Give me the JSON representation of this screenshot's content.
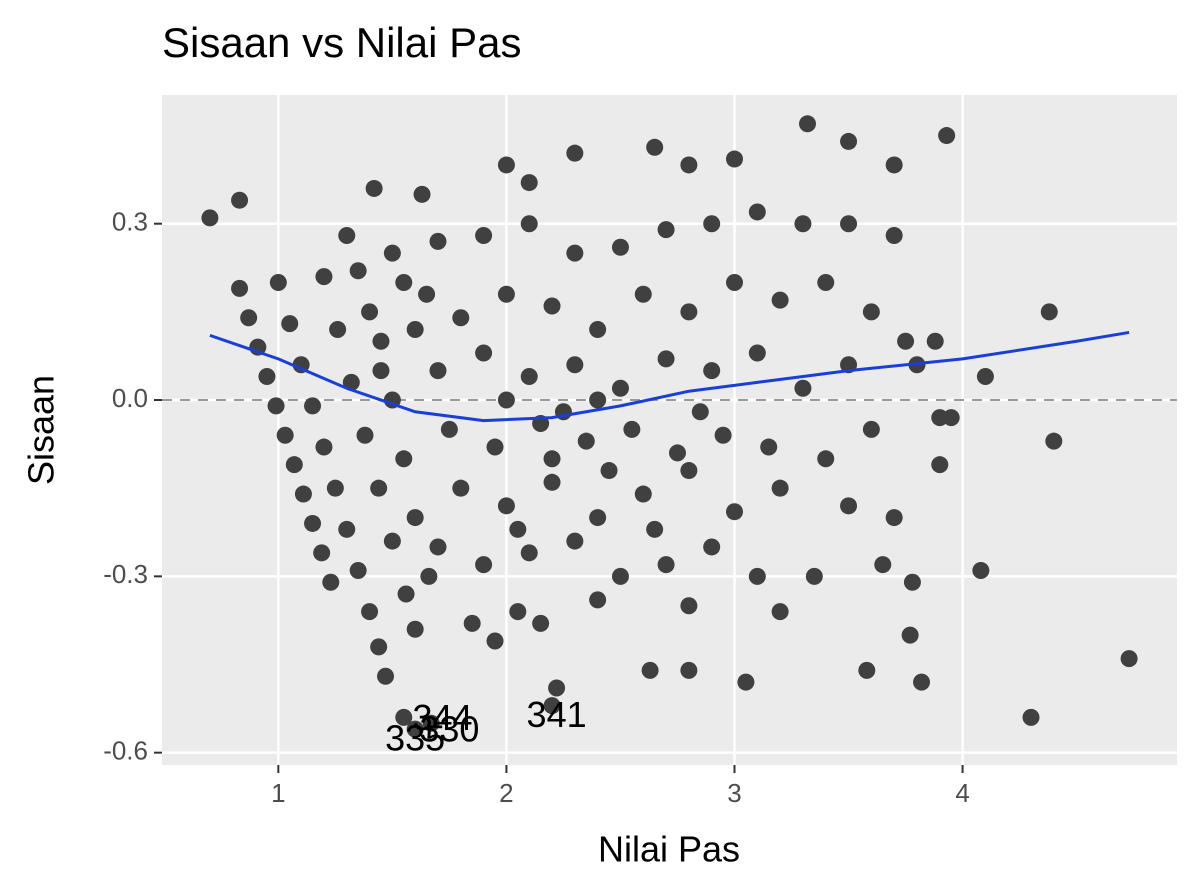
{
  "chart_data": {
    "type": "scatter",
    "title": "Sisaan vs Nilai Pas",
    "xlabel": "Nilai Pas",
    "ylabel": "Sisaan",
    "xlim": [
      0.49,
      4.94
    ],
    "ylim": [
      -0.621,
      0.519
    ],
    "xticks": [
      1,
      2,
      3,
      4
    ],
    "yticks": [
      {
        "value": 0.3,
        "label": "0.3"
      },
      {
        "value": 0,
        "label": "0.0"
      },
      {
        "value": -0.3,
        "label": "-0.3"
      },
      {
        "value": -0.6,
        "label": "-0.6"
      }
    ],
    "grid": true,
    "hline": 0,
    "points": {
      "color": "#404040",
      "x": [
        0.83,
        0.87,
        0.91,
        0.95,
        0.99,
        1.03,
        1.07,
        1.11,
        1.15,
        1.19,
        1.23,
        1.0,
        1.05,
        1.1,
        1.15,
        1.2,
        1.25,
        1.3,
        1.35,
        1.4,
        1.44,
        1.2,
        1.26,
        1.32,
        1.38,
        1.44,
        1.5,
        1.56,
        1.6,
        1.45,
        1.5,
        1.55,
        1.6,
        1.66,
        1.47,
        1.55,
        1.6,
        1.67,
        2.22,
        2.2,
        0.7,
        0.83,
        1.42,
        1.63,
        2.0,
        2.3,
        2.65,
        3.32,
        3.5,
        3.93,
        3.7,
        2.8,
        3.0,
        2.1,
        1.3,
        1.5,
        1.7,
        1.9,
        2.1,
        2.3,
        2.5,
        2.7,
        2.9,
        3.1,
        3.3,
        3.5,
        3.7,
        1.4,
        1.6,
        1.8,
        2.0,
        2.2,
        2.4,
        2.6,
        2.8,
        3.0,
        3.2,
        3.4,
        3.6,
        3.75,
        1.7,
        1.9,
        2.1,
        2.3,
        2.5,
        2.7,
        2.9,
        3.1,
        3.3,
        3.5,
        3.8,
        1.75,
        1.95,
        2.15,
        2.35,
        2.55,
        2.75,
        2.95,
        3.15,
        3.4,
        3.6,
        3.9,
        1.8,
        2.0,
        2.2,
        2.4,
        2.6,
        2.8,
        3.0,
        3.2,
        3.5,
        3.7,
        3.9,
        1.7,
        1.9,
        2.1,
        2.3,
        2.5,
        2.7,
        2.9,
        3.1,
        3.35,
        3.65,
        1.85,
        1.95,
        2.05,
        2.15,
        2.4,
        2.8,
        3.2,
        3.78,
        3.77,
        2.63,
        2.8,
        3.05,
        3.58,
        3.82,
        4.08,
        4.3,
        4.73,
        4.4,
        4.38,
        4.1,
        3.95,
        3.88,
        2.0,
        2.2,
        2.4,
        2.25,
        1.55,
        1.65,
        1.35,
        1.45,
        2.45,
        2.05,
        2.65,
        2.85
      ],
      "y": [
        0.19,
        0.14,
        0.09,
        0.04,
        -0.01,
        -0.06,
        -0.11,
        -0.16,
        -0.21,
        -0.26,
        -0.31,
        0.2,
        0.13,
        0.06,
        -0.01,
        -0.08,
        -0.15,
        -0.22,
        -0.29,
        -0.36,
        -0.42,
        0.21,
        0.12,
        0.03,
        -0.06,
        -0.15,
        -0.24,
        -0.33,
        -0.39,
        0.1,
        0.0,
        -0.1,
        -0.2,
        -0.3,
        -0.47,
        -0.54,
        -0.56,
        -0.55,
        -0.49,
        -0.52,
        0.31,
        0.34,
        0.36,
        0.35,
        0.4,
        0.42,
        0.43,
        0.47,
        0.44,
        0.45,
        0.4,
        0.4,
        0.41,
        0.37,
        0.28,
        0.25,
        0.27,
        0.28,
        0.3,
        0.25,
        0.26,
        0.29,
        0.3,
        0.32,
        0.3,
        0.3,
        0.28,
        0.15,
        0.12,
        0.14,
        0.18,
        0.16,
        0.12,
        0.18,
        0.15,
        0.2,
        0.17,
        0.2,
        0.15,
        0.1,
        0.05,
        0.08,
        0.04,
        0.06,
        0.02,
        0.07,
        0.05,
        0.08,
        0.02,
        0.06,
        0.06,
        -0.05,
        -0.08,
        -0.04,
        -0.07,
        -0.05,
        -0.09,
        -0.06,
        -0.08,
        -0.1,
        -0.05,
        -0.03,
        -0.15,
        -0.18,
        -0.14,
        -0.2,
        -0.16,
        -0.12,
        -0.19,
        -0.15,
        -0.18,
        -0.2,
        -0.11,
        -0.25,
        -0.28,
        -0.26,
        -0.24,
        -0.3,
        -0.28,
        -0.25,
        -0.3,
        -0.3,
        -0.28,
        -0.38,
        -0.41,
        -0.36,
        -0.38,
        -0.34,
        -0.35,
        -0.36,
        -0.31,
        -0.4,
        -0.46,
        -0.46,
        -0.48,
        -0.46,
        -0.48,
        -0.29,
        -0.54,
        -0.44,
        -0.07,
        0.15,
        0.04,
        -0.03,
        0.1,
        0.0,
        -0.1,
        0.0,
        -0.02,
        0.2,
        0.18,
        0.22,
        0.05,
        -0.12,
        -0.22,
        -0.22,
        -0.02
      ]
    },
    "smooth": {
      "color": "#1a3fd6",
      "x": [
        0.7,
        1.0,
        1.3,
        1.6,
        1.9,
        2.2,
        2.5,
        2.8,
        3.1,
        3.5,
        4.0,
        4.5,
        4.73
      ],
      "y": [
        0.11,
        0.07,
        0.02,
        -0.02,
        -0.035,
        -0.03,
        -0.01,
        0.015,
        0.03,
        0.05,
        0.07,
        0.1,
        0.115
      ]
    },
    "annotations": [
      {
        "text": "341",
        "x": 2.22,
        "y": -0.54
      },
      {
        "text": "344",
        "x": 1.72,
        "y": -0.545
      },
      {
        "text": "330",
        "x": 1.75,
        "y": -0.565
      },
      {
        "text": "335",
        "x": 1.6,
        "y": -0.58
      }
    ]
  }
}
